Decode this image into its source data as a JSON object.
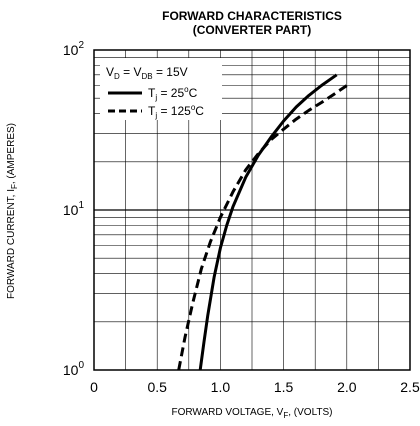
{
  "chart_data": {
    "type": "line",
    "title": "FORWARD CHARACTERISTICS",
    "subtitle": "(CONVERTER PART)",
    "xlabel": {
      "main": "FORWARD VOLTAGE, V",
      "sub": "F",
      "end": ", (VOLTS)"
    },
    "ylabel": {
      "main": "FORWARD CURRENT, I",
      "sub": "F",
      "end": ", (AMPERES)"
    },
    "x_ticks": [
      "0",
      "0.5",
      "1.0",
      "1.5",
      "2.0",
      "2.5"
    ],
    "y_ticks": [
      {
        "base": "10",
        "exp": "0"
      },
      {
        "base": "10",
        "exp": "1"
      },
      {
        "base": "10",
        "exp": "2"
      }
    ],
    "xlim": [
      0,
      2.5
    ],
    "ylim": [
      1,
      100
    ],
    "y_scale": "log",
    "grid": true,
    "legend_position": "top-left",
    "legend_header": {
      "p1": "V",
      "s1": "D",
      "p2": " = V",
      "s2": "DB",
      "p3": " = 15V"
    },
    "series": [
      {
        "name": "T",
        "name_sub": "j",
        "name_rest": " = 25",
        "name_sup": "o",
        "name_end": "C",
        "style": "solid",
        "x": [
          0.84,
          0.87,
          0.9,
          0.95,
          1.0,
          1.05,
          1.1,
          1.2,
          1.3,
          1.4,
          1.5,
          1.6,
          1.7,
          1.8,
          1.92
        ],
        "y": [
          1.0,
          1.5,
          2.2,
          3.8,
          5.8,
          8.0,
          10.5,
          16.0,
          22.0,
          28.5,
          36.0,
          44.0,
          52.0,
          60.0,
          70.0
        ]
      },
      {
        "name": "T",
        "name_sub": "j",
        "name_rest": " = 125",
        "name_sup": "o",
        "name_end": "C",
        "style": "dashed",
        "x": [
          0.67,
          0.72,
          0.78,
          0.85,
          0.92,
          1.0,
          1.1,
          1.2,
          1.3,
          1.4,
          1.5,
          1.6,
          1.7,
          1.8,
          1.9,
          2.0
        ],
        "y": [
          1.0,
          1.6,
          2.6,
          4.3,
          6.3,
          9.0,
          13.0,
          17.8,
          22.5,
          27.5,
          32.0,
          37.0,
          42.0,
          47.0,
          53.0,
          60.0
        ]
      }
    ]
  }
}
